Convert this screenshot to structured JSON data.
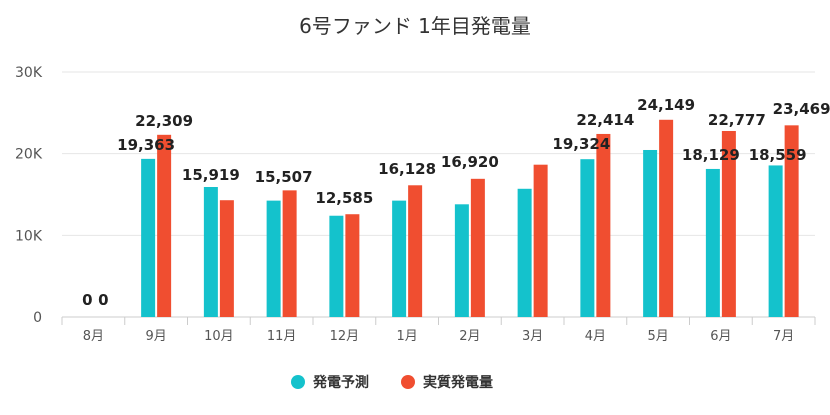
{
  "chart_data": {
    "type": "bar",
    "title": "6号ファンド 1年目発電量",
    "categories": [
      "8月",
      "9月",
      "10月",
      "11月",
      "12月",
      "1月",
      "2月",
      "3月",
      "4月",
      "5月",
      "6月",
      "7月"
    ],
    "series": [
      {
        "name": "発電予測",
        "color": "#14c2cc",
        "values": [
          0,
          19363,
          15919,
          14250,
          12400,
          14250,
          13800,
          15700,
          19324,
          20450,
          18129,
          18559
        ]
      },
      {
        "name": "実質発電量",
        "color": "#f04e30",
        "values": [
          0,
          22309,
          14300,
          15507,
          12585,
          16128,
          16920,
          18650,
          22414,
          24149,
          22777,
          23469
        ]
      }
    ],
    "data_labels": [
      {
        "index": 0,
        "text": "0"
      },
      {
        "index": 0,
        "text": "0"
      },
      {
        "index": 1,
        "text": "19,363"
      },
      {
        "index": 1,
        "text": "22,309"
      },
      {
        "index": 2,
        "text": "15,919"
      },
      {
        "index": 3,
        "text": "15,507"
      },
      {
        "index": 4,
        "text": "12,585"
      },
      {
        "index": 5,
        "text": "16,128"
      },
      {
        "index": 6,
        "text": "16,920"
      },
      {
        "index": 8,
        "text": "19,324"
      },
      {
        "index": 8,
        "text": "22,414"
      },
      {
        "index": 9,
        "text": "24,149"
      },
      {
        "index": 10,
        "text": "18,129"
      },
      {
        "index": 10,
        "text": "22,777"
      },
      {
        "index": 11,
        "text": "18,559"
      },
      {
        "index": 11,
        "text": "23,469"
      }
    ],
    "yticks": [
      {
        "value": 0,
        "label": "0"
      },
      {
        "value": 10000,
        "label": "10K"
      },
      {
        "value": 20000,
        "label": "20K"
      },
      {
        "value": 30000,
        "label": "30K"
      }
    ],
    "ylim": [
      0,
      30000
    ],
    "grid": true,
    "legend_position": "bottom-center"
  }
}
